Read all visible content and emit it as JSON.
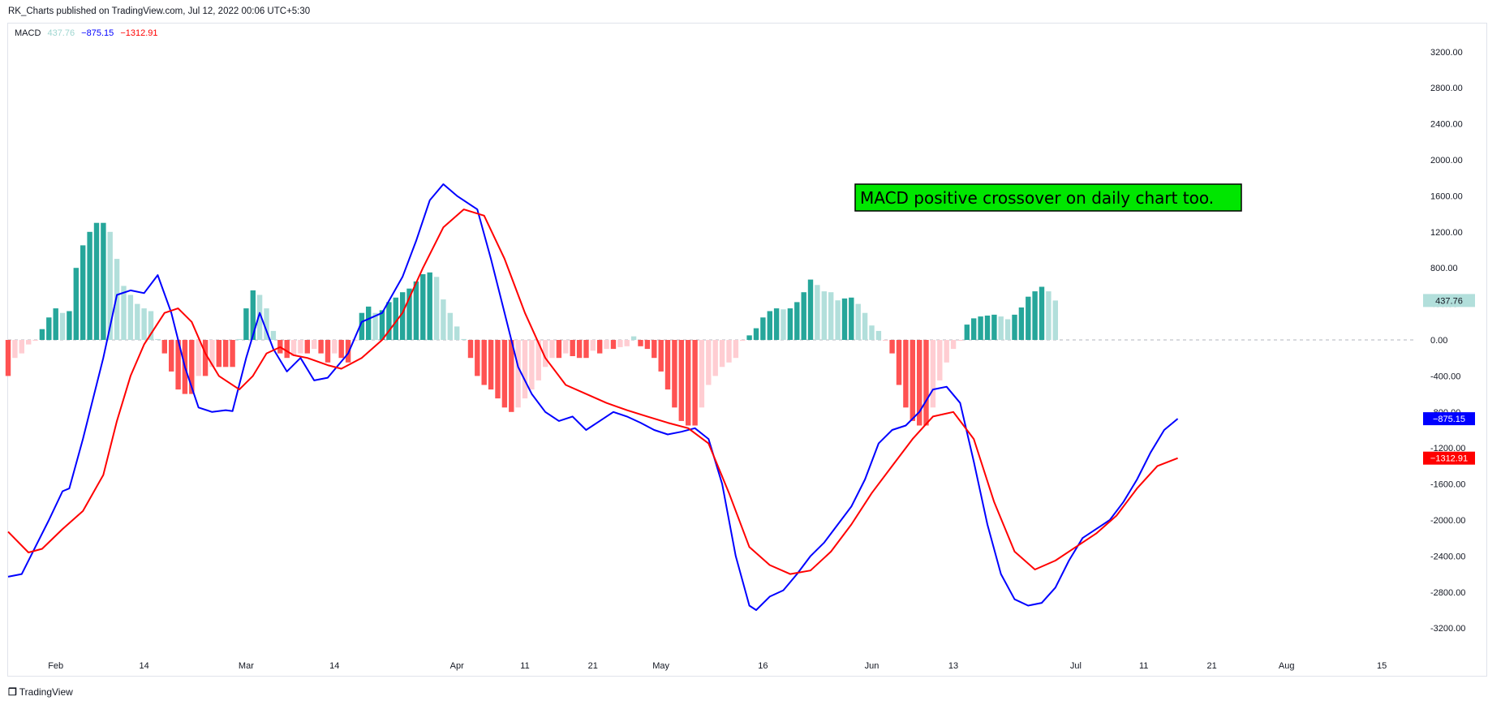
{
  "header": {
    "publisher_line": "RK_Charts published on TradingView.com, Jul 12, 2022 00:06 UTC+5:30"
  },
  "legend": {
    "name": "MACD",
    "histogram_value": "437.76",
    "macd_value": "−875.15",
    "signal_value": "−1312.91"
  },
  "footer": {
    "brand": "TradingView"
  },
  "annotation": {
    "text": "MACD positive crossover on daily chart too."
  },
  "colors": {
    "macd_line": "#0000ff",
    "signal_line": "#ff0000",
    "hist_pos_strong": "#26a69a",
    "hist_pos_weak": "#b2dfdb",
    "hist_neg_strong": "#ff5252",
    "hist_neg_weak": "#ffcdd2",
    "annotation_bg": "#00e600",
    "zero_line": "#b2b5be"
  },
  "chart_data": {
    "type": "line",
    "title": "MACD",
    "y_ticks": [
      "3200.00",
      "2800.00",
      "2400.00",
      "2000.00",
      "1600.00",
      "1200.00",
      "800.00",
      "400.00",
      "0.00",
      "-400.00",
      "-800.00",
      "-1200.00",
      "-1600.00",
      "-2000.00",
      "-2400.00",
      "-2800.00",
      "-3200.00"
    ],
    "ylim": [
      -3550,
      3550
    ],
    "x_range": [
      "2022-01-25",
      "2022-08-20"
    ],
    "x_ticks": [
      {
        "label": "Feb",
        "date": "2022-02-01"
      },
      {
        "label": "14",
        "date": "2022-02-14"
      },
      {
        "label": "Mar",
        "date": "2022-03-01"
      },
      {
        "label": "14",
        "date": "2022-03-14"
      },
      {
        "label": "Apr",
        "date": "2022-04-01"
      },
      {
        "label": "11",
        "date": "2022-04-11"
      },
      {
        "label": "21",
        "date": "2022-04-21"
      },
      {
        "label": "May",
        "date": "2022-05-01"
      },
      {
        "label": "16",
        "date": "2022-05-16"
      },
      {
        "label": "Jun",
        "date": "2022-06-01"
      },
      {
        "label": "13",
        "date": "2022-06-13"
      },
      {
        "label": "Jul",
        "date": "2022-07-01"
      },
      {
        "label": "11",
        "date": "2022-07-11"
      },
      {
        "label": "21",
        "date": "2022-07-21"
      },
      {
        "label": "Aug",
        "date": "2022-08-01"
      },
      {
        "label": "15",
        "date": "2022-08-15"
      }
    ],
    "series": [
      {
        "name": "MACD",
        "kind": "line",
        "points": [
          [
            "2022-01-25",
            -2630
          ],
          [
            "2022-01-27",
            -2600
          ],
          [
            "2022-01-29",
            -2300
          ],
          [
            "2022-01-31",
            -2000
          ],
          [
            "2022-02-02",
            -1680
          ],
          [
            "2022-02-03",
            -1650
          ],
          [
            "2022-02-05",
            -1100
          ],
          [
            "2022-02-08",
            -200
          ],
          [
            "2022-02-10",
            500
          ],
          [
            "2022-02-12",
            550
          ],
          [
            "2022-02-14",
            520
          ],
          [
            "2022-02-16",
            720
          ],
          [
            "2022-02-18",
            300
          ],
          [
            "2022-02-20",
            -300
          ],
          [
            "2022-02-22",
            -750
          ],
          [
            "2022-02-24",
            -800
          ],
          [
            "2022-02-26",
            -780
          ],
          [
            "2022-02-27",
            -790
          ],
          [
            "2022-03-01",
            -200
          ],
          [
            "2022-03-03",
            300
          ],
          [
            "2022-03-05",
            -100
          ],
          [
            "2022-03-07",
            -350
          ],
          [
            "2022-03-09",
            -200
          ],
          [
            "2022-03-11",
            -450
          ],
          [
            "2022-03-13",
            -420
          ],
          [
            "2022-03-16",
            -150
          ],
          [
            "2022-03-18",
            200
          ],
          [
            "2022-03-21",
            300
          ],
          [
            "2022-03-24",
            700
          ],
          [
            "2022-03-26",
            1100
          ],
          [
            "2022-03-28",
            1550
          ],
          [
            "2022-03-30",
            1730
          ],
          [
            "2022-04-01",
            1600
          ],
          [
            "2022-04-04",
            1450
          ],
          [
            "2022-04-06",
            900
          ],
          [
            "2022-04-08",
            300
          ],
          [
            "2022-04-10",
            -300
          ],
          [
            "2022-04-12",
            -600
          ],
          [
            "2022-04-14",
            -800
          ],
          [
            "2022-04-16",
            -900
          ],
          [
            "2022-04-18",
            -850
          ],
          [
            "2022-04-20",
            -1000
          ],
          [
            "2022-04-22",
            -900
          ],
          [
            "2022-04-24",
            -800
          ],
          [
            "2022-04-26",
            -850
          ],
          [
            "2022-04-28",
            -920
          ],
          [
            "2022-04-30",
            -1000
          ],
          [
            "2022-05-02",
            -1050
          ],
          [
            "2022-05-04",
            -1020
          ],
          [
            "2022-05-06",
            -980
          ],
          [
            "2022-05-08",
            -1100
          ],
          [
            "2022-05-10",
            -1600
          ],
          [
            "2022-05-12",
            -2400
          ],
          [
            "2022-05-14",
            -2950
          ],
          [
            "2022-05-15",
            -3000
          ],
          [
            "2022-05-17",
            -2850
          ],
          [
            "2022-05-19",
            -2780
          ],
          [
            "2022-05-21",
            -2600
          ],
          [
            "2022-05-23",
            -2400
          ],
          [
            "2022-05-25",
            -2250
          ],
          [
            "2022-05-27",
            -2050
          ],
          [
            "2022-05-29",
            -1850
          ],
          [
            "2022-05-31",
            -1550
          ],
          [
            "2022-06-02",
            -1150
          ],
          [
            "2022-06-04",
            -1000
          ],
          [
            "2022-06-06",
            -950
          ],
          [
            "2022-06-08",
            -800
          ],
          [
            "2022-06-10",
            -550
          ],
          [
            "2022-06-12",
            -520
          ],
          [
            "2022-06-14",
            -700
          ],
          [
            "2022-06-16",
            -1350
          ],
          [
            "2022-06-18",
            -2050
          ],
          [
            "2022-06-20",
            -2600
          ],
          [
            "2022-06-22",
            -2880
          ],
          [
            "2022-06-24",
            -2950
          ],
          [
            "2022-06-26",
            -2920
          ],
          [
            "2022-06-28",
            -2750
          ],
          [
            "2022-06-30",
            -2450
          ],
          [
            "2022-07-02",
            -2200
          ],
          [
            "2022-07-04",
            -2100
          ],
          [
            "2022-07-06",
            -2000
          ],
          [
            "2022-07-08",
            -1800
          ],
          [
            "2022-07-10",
            -1550
          ],
          [
            "2022-07-12",
            -1250
          ],
          [
            "2022-07-14",
            -1000
          ],
          [
            "2022-07-16",
            -875
          ]
        ]
      },
      {
        "name": "Signal",
        "kind": "line",
        "points": [
          [
            "2022-01-25",
            -2130
          ],
          [
            "2022-01-28",
            -2360
          ],
          [
            "2022-01-30",
            -2320
          ],
          [
            "2022-02-02",
            -2100
          ],
          [
            "2022-02-05",
            -1900
          ],
          [
            "2022-02-08",
            -1500
          ],
          [
            "2022-02-10",
            -900
          ],
          [
            "2022-02-12",
            -400
          ],
          [
            "2022-02-14",
            -50
          ],
          [
            "2022-02-17",
            300
          ],
          [
            "2022-02-19",
            350
          ],
          [
            "2022-02-21",
            200
          ],
          [
            "2022-02-23",
            -150
          ],
          [
            "2022-02-25",
            -400
          ],
          [
            "2022-02-28",
            -550
          ],
          [
            "2022-03-02",
            -400
          ],
          [
            "2022-03-04",
            -150
          ],
          [
            "2022-03-06",
            -80
          ],
          [
            "2022-03-08",
            -170
          ],
          [
            "2022-03-10",
            -200
          ],
          [
            "2022-03-13",
            -280
          ],
          [
            "2022-03-15",
            -320
          ],
          [
            "2022-03-18",
            -200
          ],
          [
            "2022-03-21",
            0
          ],
          [
            "2022-03-24",
            300
          ],
          [
            "2022-03-27",
            800
          ],
          [
            "2022-03-30",
            1250
          ],
          [
            "2022-04-02",
            1450
          ],
          [
            "2022-04-05",
            1380
          ],
          [
            "2022-04-08",
            900
          ],
          [
            "2022-04-11",
            300
          ],
          [
            "2022-04-14",
            -200
          ],
          [
            "2022-04-17",
            -500
          ],
          [
            "2022-04-20",
            -600
          ],
          [
            "2022-04-23",
            -700
          ],
          [
            "2022-04-26",
            -780
          ],
          [
            "2022-04-29",
            -850
          ],
          [
            "2022-05-02",
            -920
          ],
          [
            "2022-05-05",
            -980
          ],
          [
            "2022-05-08",
            -1150
          ],
          [
            "2022-05-11",
            -1700
          ],
          [
            "2022-05-14",
            -2300
          ],
          [
            "2022-05-17",
            -2500
          ],
          [
            "2022-05-20",
            -2600
          ],
          [
            "2022-05-23",
            -2560
          ],
          [
            "2022-05-26",
            -2350
          ],
          [
            "2022-05-29",
            -2050
          ],
          [
            "2022-06-01",
            -1700
          ],
          [
            "2022-06-04",
            -1400
          ],
          [
            "2022-06-07",
            -1100
          ],
          [
            "2022-06-10",
            -850
          ],
          [
            "2022-06-13",
            -800
          ],
          [
            "2022-06-16",
            -1100
          ],
          [
            "2022-06-19",
            -1800
          ],
          [
            "2022-06-22",
            -2350
          ],
          [
            "2022-06-25",
            -2550
          ],
          [
            "2022-06-28",
            -2450
          ],
          [
            "2022-07-01",
            -2300
          ],
          [
            "2022-07-04",
            -2150
          ],
          [
            "2022-07-07",
            -1950
          ],
          [
            "2022-07-10",
            -1650
          ],
          [
            "2022-07-13",
            -1400
          ],
          [
            "2022-07-16",
            -1312.91
          ]
        ]
      },
      {
        "name": "Histogram",
        "kind": "bar",
        "start": "2022-01-25",
        "values": [
          -400,
          -200,
          -150,
          -50,
          -10,
          120,
          250,
          350,
          300,
          320,
          800,
          1050,
          1200,
          1300,
          1300,
          1200,
          900,
          600,
          500,
          400,
          350,
          320,
          10,
          -150,
          -350,
          -550,
          -600,
          -600,
          -400,
          -400,
          -300,
          -300,
          -300,
          -300,
          10,
          350,
          550,
          500,
          350,
          100,
          -150,
          -200,
          -180,
          -150,
          -150,
          -100,
          -150,
          -250,
          -150,
          -200,
          -250,
          -10,
          300,
          370,
          300,
          330,
          420,
          470,
          530,
          570,
          650,
          730,
          750,
          700,
          450,
          300,
          150,
          10,
          -200,
          -400,
          -500,
          -550,
          -650,
          -750,
          -800,
          -750,
          -650,
          -550,
          -450,
          -300,
          -200,
          -200,
          -150,
          -180,
          -200,
          -200,
          -120,
          -150,
          -100,
          -100,
          -80,
          -70,
          40,
          -70,
          -100,
          -200,
          -350,
          -550,
          -750,
          -900,
          -950,
          -950,
          -750,
          -500,
          -400,
          -300,
          -250,
          -200,
          -10,
          50,
          130,
          250,
          320,
          350,
          340,
          350,
          420,
          530,
          670,
          610,
          540,
          530,
          440,
          460,
          470,
          400,
          300,
          160,
          100,
          -10,
          -150,
          -500,
          -750,
          -900,
          -950,
          -950,
          -750,
          -450,
          -250,
          -100,
          -10,
          170,
          240,
          260,
          270,
          280,
          260,
          230,
          280,
          360,
          480,
          540,
          590,
          540,
          437.76
        ]
      }
    ]
  }
}
